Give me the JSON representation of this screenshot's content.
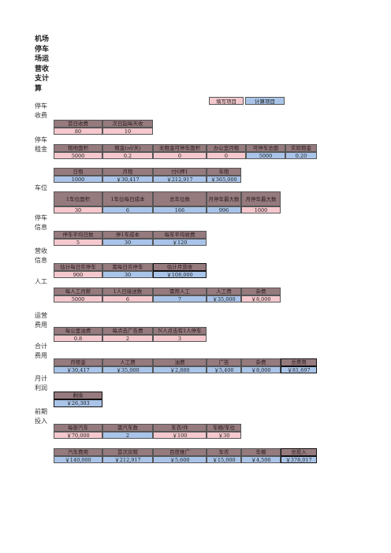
{
  "title": "机场停车场运营收支计算",
  "legend": {
    "input": "填写项目",
    "calc": "计算项目"
  },
  "side": {
    "parking_revenue": "停车收费",
    "parking_rent": "停车租金",
    "spots": "车位",
    "parking_info": "停车信息",
    "revenue_info": "营收信息",
    "labor": "人工",
    "op_cost": "运营费用",
    "total_cost": "合计费用",
    "monthly_profit": "月计利润",
    "initial_invest": "前期投入"
  },
  "fees": {
    "headers": [
      "首日收费",
      "次日起每天收"
    ],
    "values": [
      "80",
      "10"
    ]
  },
  "rent": {
    "headers": [
      "租地面积",
      "租金(㎡/天)",
      "无租金可停车面积",
      "办公室月租",
      "可停车总面",
      "实际租金"
    ],
    "values": [
      "5000",
      "0.2",
      "0",
      "0",
      "5000",
      "0.20"
    ]
  },
  "rent_pay": {
    "headers": [
      "日租",
      "月租",
      "付6押1",
      "年租"
    ],
    "values": [
      "1000",
      "￥30,417",
      "￥212,917",
      "￥365,000"
    ]
  },
  "spot_calc": {
    "headers": [
      "1车位面积",
      "1车位每日成本",
      "总车位数",
      "月停车最大数",
      "月停车最大数"
    ],
    "values": [
      "30",
      "6",
      "166",
      "996",
      "1000"
    ]
  },
  "park_info": {
    "headers": [
      "停车平均日数",
      "停1车成本",
      "每车平均收费"
    ],
    "values": [
      "5",
      "30",
      "￥120"
    ]
  },
  "rev_info": {
    "headers": [
      "估计每日实停车",
      "需每日实停车",
      "估计月营收"
    ],
    "values": [
      "900",
      "30",
      "￥108,000"
    ]
  },
  "labor": {
    "headers": [
      "每人工月薪",
      "1人日接送数",
      "需用人工",
      "人工费",
      "杂费"
    ],
    "values": [
      "5000",
      "6",
      "7",
      "￥35,000",
      "￥8,000"
    ]
  },
  "opcost": {
    "headers": [
      "每公里油费",
      "每点击广告费",
      "N人点击有1人停车"
    ],
    "values": [
      "0.8",
      "2",
      "3"
    ]
  },
  "totals": {
    "headers": [
      "月租金",
      "人工费",
      "油费",
      "广告",
      "杂费",
      "总费用"
    ],
    "values": [
      "￥30,417",
      "￥35,000",
      "￥2,880",
      "￥5,400",
      "￥8,000",
      "￥81,697"
    ]
  },
  "profit": {
    "header": "剩余",
    "value": "￥26,303"
  },
  "invest1": {
    "headers": [
      "每部汽车",
      "需汽车数",
      "车衣/件",
      "车棚/车位"
    ],
    "values": [
      "￥70,000",
      "2",
      "￥100",
      "￥30"
    ]
  },
  "invest2": {
    "headers": [
      "汽车费用",
      "首次房租",
      "百度推广",
      "车衣",
      "车棚",
      "总投入"
    ],
    "values": [
      "￥140,000",
      "￥212,917",
      "￥5,600",
      "￥15,000",
      "￥4,500",
      "￥378,017"
    ]
  },
  "colors": {
    "header_bg": "#957a7e",
    "calc_bg": "#a9c4e8",
    "input_bg": "#f4c8ce"
  }
}
